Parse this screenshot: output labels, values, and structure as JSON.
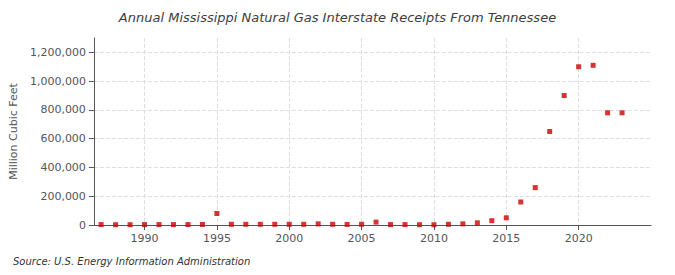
{
  "chart_data": {
    "type": "scatter",
    "title": "Annual Mississippi Natural Gas Interstate Receipts From Tennessee",
    "ylabel": "Million Cubic Feet",
    "source": "Source: U.S. Energy Information Administration",
    "color": "#cc0000",
    "marker": "square",
    "x": [
      1987,
      1988,
      1989,
      1990,
      1991,
      1992,
      1993,
      1994,
      1995,
      1996,
      1997,
      1998,
      1999,
      2000,
      2001,
      2002,
      2003,
      2004,
      2005,
      2006,
      2007,
      2008,
      2009,
      2010,
      2011,
      2012,
      2013,
      2014,
      2015,
      2016,
      2017,
      2018,
      2019,
      2020,
      2021,
      2022,
      2023
    ],
    "values": [
      3000,
      2000,
      2000,
      3000,
      3000,
      3000,
      3000,
      4000,
      80000,
      5000,
      5000,
      5000,
      5000,
      5000,
      5000,
      8000,
      5000,
      4000,
      5000,
      20000,
      3000,
      3000,
      2000,
      2000,
      5000,
      8000,
      15000,
      30000,
      50000,
      160000,
      260000,
      650000,
      900000,
      1100000,
      1110000,
      780000,
      780000
    ],
    "xlim": [
      1986.5,
      2025
    ],
    "xticks": [
      1990,
      1995,
      2000,
      2005,
      2010,
      2015,
      2020
    ],
    "ylim": [
      0,
      1300000
    ],
    "yticks": [
      0,
      {
        "value": 200000,
        "label": "200,000"
      },
      {
        "value": 400000,
        "label": "400,000"
      },
      {
        "value": 600000,
        "label": "600,000"
      },
      {
        "value": 800000,
        "label": "800,000"
      },
      {
        "value": 1000000,
        "label": "1,000,000"
      },
      {
        "value": 1200000,
        "label": "1,200,000"
      }
    ],
    "grid": true
  }
}
